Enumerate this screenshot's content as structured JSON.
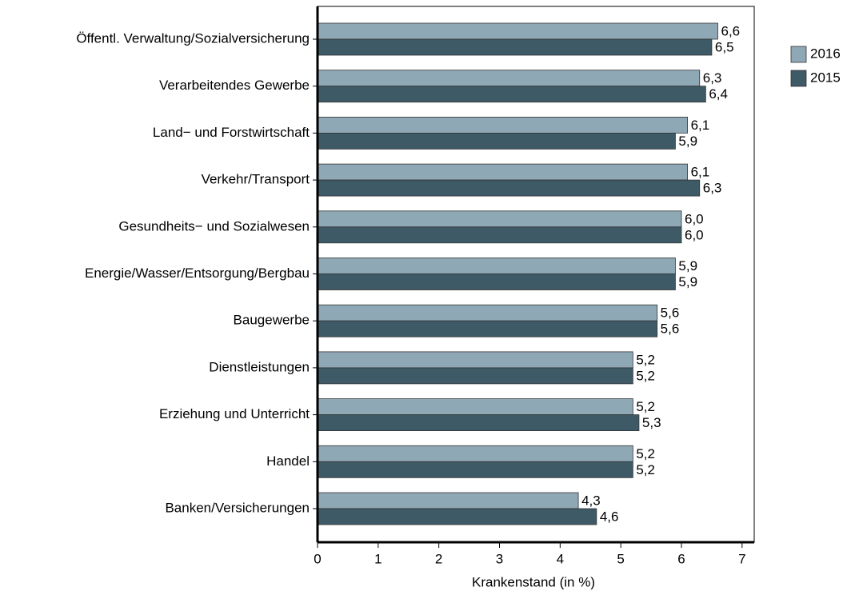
{
  "chart_data": {
    "type": "bar",
    "orientation": "horizontal",
    "x_label": "Krankenstand (in %)",
    "categories": [
      "Öffentl. Verwaltung/Sozialversicherung",
      "Verarbeitendes Gewerbe",
      "Land− und Forstwirtschaft",
      "Verkehr/Transport",
      "Gesundheits− und Sozialwesen",
      "Energie/Wasser/Entsorgung/Bergbau",
      "Baugewerbe",
      "Dienstleistungen",
      "Erziehung und Unterricht",
      "Handel",
      "Banken/Versicherungen"
    ],
    "series": [
      {
        "name": "2016",
        "color": "#8fa8b5",
        "values": [
          6.6,
          6.3,
          6.1,
          6.1,
          6.0,
          5.9,
          5.6,
          5.2,
          5.2,
          5.2,
          4.3
        ],
        "value_labels": [
          "6,6",
          "6,3",
          "6,1",
          "6,1",
          "6,0",
          "5,9",
          "5,6",
          "5,2",
          "5,2",
          "5,2",
          "4,3"
        ]
      },
      {
        "name": "2015",
        "color": "#3d5a66",
        "values": [
          6.5,
          6.4,
          5.9,
          6.3,
          6.0,
          5.9,
          5.6,
          5.2,
          5.3,
          5.2,
          4.6
        ],
        "value_labels": [
          "6,5",
          "6,4",
          "5,9",
          "6,3",
          "6,0",
          "5,9",
          "5,6",
          "5,2",
          "5,3",
          "5,2",
          "4,6"
        ]
      }
    ],
    "xlim": [
      0,
      7.2
    ],
    "xticks": [
      0,
      1,
      2,
      3,
      4,
      5,
      6,
      7
    ],
    "legend": "right"
  }
}
